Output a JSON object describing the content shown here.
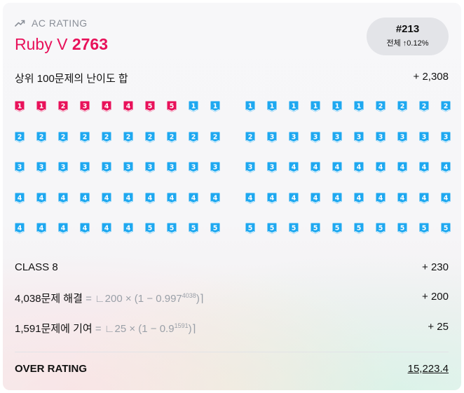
{
  "header": {
    "label": "AC RATING",
    "icon": "trending-up-icon",
    "tier_name": "Ruby V",
    "rating": "2763",
    "tier_color": "#e8115a"
  },
  "rank": {
    "number": "#213",
    "sub_label": "전체",
    "sub_arrow": "↑",
    "sub_value": "0.12%"
  },
  "top100": {
    "label": "상위 100문제의 난이도 합",
    "value": "+ 2,308"
  },
  "problem_grids": [
    {
      "rows": [
        [
          {
            "t": "ruby",
            "n": "1"
          },
          {
            "t": "ruby",
            "n": "1"
          },
          {
            "t": "ruby",
            "n": "2"
          },
          {
            "t": "ruby",
            "n": "3"
          },
          {
            "t": "ruby",
            "n": "4"
          },
          {
            "t": "ruby",
            "n": "4"
          },
          {
            "t": "ruby",
            "n": "5"
          },
          {
            "t": "ruby",
            "n": "5"
          },
          {
            "t": "diamond",
            "n": "1"
          },
          {
            "t": "diamond",
            "n": "1"
          }
        ],
        [
          {
            "t": "diamond",
            "n": "2"
          },
          {
            "t": "diamond",
            "n": "2"
          },
          {
            "t": "diamond",
            "n": "2"
          },
          {
            "t": "diamond",
            "n": "2"
          },
          {
            "t": "diamond",
            "n": "2"
          },
          {
            "t": "diamond",
            "n": "2"
          },
          {
            "t": "diamond",
            "n": "2"
          },
          {
            "t": "diamond",
            "n": "2"
          },
          {
            "t": "diamond",
            "n": "2"
          },
          {
            "t": "diamond",
            "n": "2"
          }
        ],
        [
          {
            "t": "diamond",
            "n": "3"
          },
          {
            "t": "diamond",
            "n": "3"
          },
          {
            "t": "diamond",
            "n": "3"
          },
          {
            "t": "diamond",
            "n": "3"
          },
          {
            "t": "diamond",
            "n": "3"
          },
          {
            "t": "diamond",
            "n": "3"
          },
          {
            "t": "diamond",
            "n": "3"
          },
          {
            "t": "diamond",
            "n": "3"
          },
          {
            "t": "diamond",
            "n": "3"
          },
          {
            "t": "diamond",
            "n": "3"
          }
        ],
        [
          {
            "t": "diamond",
            "n": "4"
          },
          {
            "t": "diamond",
            "n": "4"
          },
          {
            "t": "diamond",
            "n": "4"
          },
          {
            "t": "diamond",
            "n": "4"
          },
          {
            "t": "diamond",
            "n": "4"
          },
          {
            "t": "diamond",
            "n": "4"
          },
          {
            "t": "diamond",
            "n": "4"
          },
          {
            "t": "diamond",
            "n": "4"
          },
          {
            "t": "diamond",
            "n": "4"
          },
          {
            "t": "diamond",
            "n": "4"
          }
        ],
        [
          {
            "t": "diamond",
            "n": "4"
          },
          {
            "t": "diamond",
            "n": "4"
          },
          {
            "t": "diamond",
            "n": "4"
          },
          {
            "t": "diamond",
            "n": "4"
          },
          {
            "t": "diamond",
            "n": "4"
          },
          {
            "t": "diamond",
            "n": "4"
          },
          {
            "t": "diamond",
            "n": "5"
          },
          {
            "t": "diamond",
            "n": "5"
          },
          {
            "t": "diamond",
            "n": "5"
          },
          {
            "t": "diamond",
            "n": "5"
          }
        ]
      ]
    },
    {
      "rows": [
        [
          {
            "t": "diamond",
            "n": "1"
          },
          {
            "t": "diamond",
            "n": "1"
          },
          {
            "t": "diamond",
            "n": "1"
          },
          {
            "t": "diamond",
            "n": "1"
          },
          {
            "t": "diamond",
            "n": "1"
          },
          {
            "t": "diamond",
            "n": "1"
          },
          {
            "t": "diamond",
            "n": "2"
          },
          {
            "t": "diamond",
            "n": "2"
          },
          {
            "t": "diamond",
            "n": "2"
          },
          {
            "t": "diamond",
            "n": "2"
          }
        ],
        [
          {
            "t": "diamond",
            "n": "2"
          },
          {
            "t": "diamond",
            "n": "3"
          },
          {
            "t": "diamond",
            "n": "3"
          },
          {
            "t": "diamond",
            "n": "3"
          },
          {
            "t": "diamond",
            "n": "3"
          },
          {
            "t": "diamond",
            "n": "3"
          },
          {
            "t": "diamond",
            "n": "3"
          },
          {
            "t": "diamond",
            "n": "3"
          },
          {
            "t": "diamond",
            "n": "3"
          },
          {
            "t": "diamond",
            "n": "3"
          }
        ],
        [
          {
            "t": "diamond",
            "n": "3"
          },
          {
            "t": "diamond",
            "n": "3"
          },
          {
            "t": "diamond",
            "n": "4"
          },
          {
            "t": "diamond",
            "n": "4"
          },
          {
            "t": "diamond",
            "n": "4"
          },
          {
            "t": "diamond",
            "n": "4"
          },
          {
            "t": "diamond",
            "n": "4"
          },
          {
            "t": "diamond",
            "n": "4"
          },
          {
            "t": "diamond",
            "n": "4"
          },
          {
            "t": "diamond",
            "n": "4"
          }
        ],
        [
          {
            "t": "diamond",
            "n": "4"
          },
          {
            "t": "diamond",
            "n": "4"
          },
          {
            "t": "diamond",
            "n": "4"
          },
          {
            "t": "diamond",
            "n": "4"
          },
          {
            "t": "diamond",
            "n": "4"
          },
          {
            "t": "diamond",
            "n": "4"
          },
          {
            "t": "diamond",
            "n": "4"
          },
          {
            "t": "diamond",
            "n": "4"
          },
          {
            "t": "diamond",
            "n": "4"
          },
          {
            "t": "diamond",
            "n": "4"
          }
        ],
        [
          {
            "t": "diamond",
            "n": "5"
          },
          {
            "t": "diamond",
            "n": "5"
          },
          {
            "t": "diamond",
            "n": "5"
          },
          {
            "t": "diamond",
            "n": "5"
          },
          {
            "t": "diamond",
            "n": "5"
          },
          {
            "t": "diamond",
            "n": "5"
          },
          {
            "t": "diamond",
            "n": "5"
          },
          {
            "t": "diamond",
            "n": "5"
          },
          {
            "t": "diamond",
            "n": "5"
          },
          {
            "t": "diamond",
            "n": "5"
          }
        ]
      ]
    }
  ],
  "badge_colors": {
    "ruby": "#e8115a",
    "diamond": "#1ea8f0"
  },
  "class_row": {
    "label": "CLASS 8",
    "value": "+ 230"
  },
  "solved_row": {
    "label": "4,038문제 해결",
    "f_prefix": " = ∟200 × (1 − 0.997",
    "f_exp": "4038",
    "f_suffix": ")⌉",
    "value": "+ 200"
  },
  "contrib_row": {
    "label": "1,591문제에 기여",
    "f_prefix": " = ∟25 × (1 − 0.9",
    "f_exp": "1591",
    "f_suffix": ")⌉",
    "value": "+ 25"
  },
  "over_rating": {
    "label": "OVER RATING",
    "value": "15,223.4"
  }
}
